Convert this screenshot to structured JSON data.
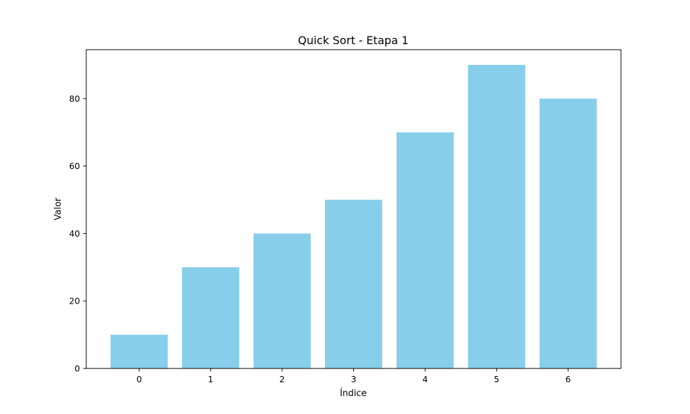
{
  "chart_data": {
    "type": "bar",
    "title": "Quick Sort - Etapa 1",
    "xlabel": "Índice",
    "ylabel": "Valor",
    "categories": [
      "0",
      "1",
      "2",
      "3",
      "4",
      "5",
      "6"
    ],
    "values": [
      10,
      30,
      40,
      50,
      70,
      90,
      80
    ],
    "ylim": [
      0,
      94.5
    ],
    "yticks": [
      0,
      20,
      40,
      60,
      80
    ],
    "ytick_labels": [
      "0",
      "20",
      "40",
      "60",
      "80"
    ],
    "bar_color": "#87CEEB",
    "grid": false,
    "legend": "none"
  }
}
